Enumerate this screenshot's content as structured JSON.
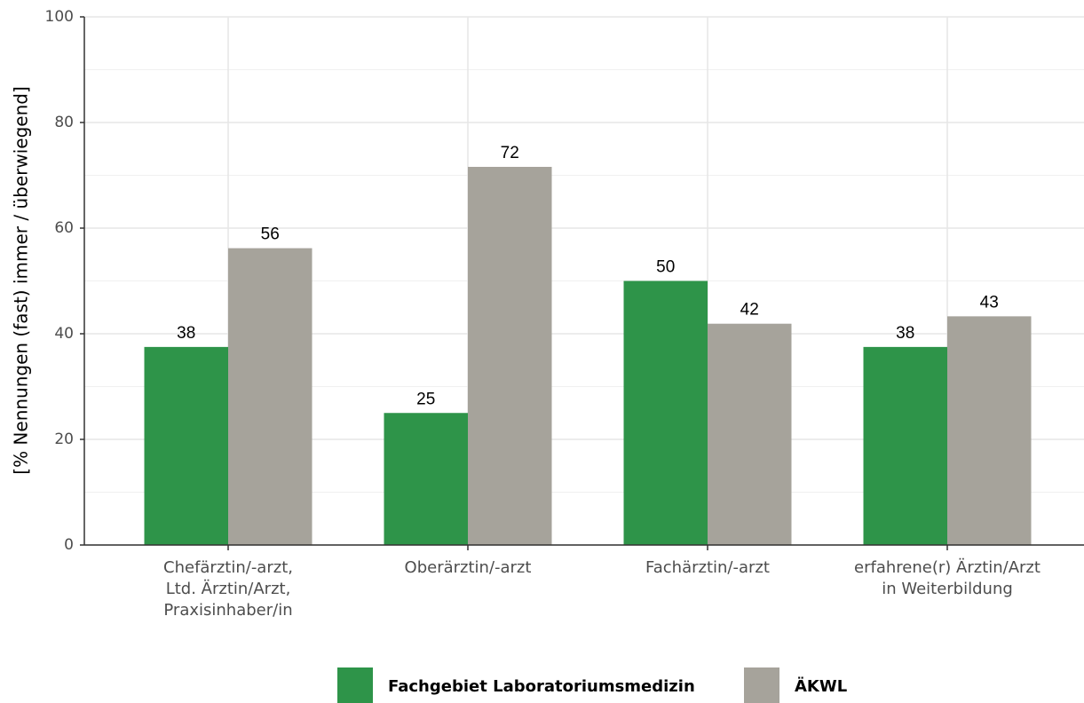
{
  "chart_data": {
    "type": "bar",
    "y_label": "[% Nennungen (fast) immer / überwiegend]",
    "categories": [
      "Chefärztin/-arzt,\nLtd. Ärztin/Arzt,\nPraxisinhaber/in",
      "Oberärztin/-arzt",
      "Fachärztin/-arzt",
      "erfahrene(r) Ärztin/Arzt\nin Weiterbildung"
    ],
    "series": [
      {
        "name": "Fachgebiet Laboratoriumsmedizin",
        "color": "#2e9449",
        "values": [
          37.5,
          25,
          50,
          37.5
        ],
        "value_labels": [
          "38",
          "25",
          "50",
          "38"
        ]
      },
      {
        "name": "ÄKWL",
        "color": "#a6a39b",
        "values": [
          56.2,
          71.6,
          41.9,
          43.3
        ],
        "value_labels": [
          "56",
          "72",
          "42",
          "43"
        ]
      }
    ],
    "ylim": [
      0,
      100
    ],
    "yticks": [
      0,
      20,
      40,
      60,
      80,
      100
    ],
    "grid": true
  }
}
